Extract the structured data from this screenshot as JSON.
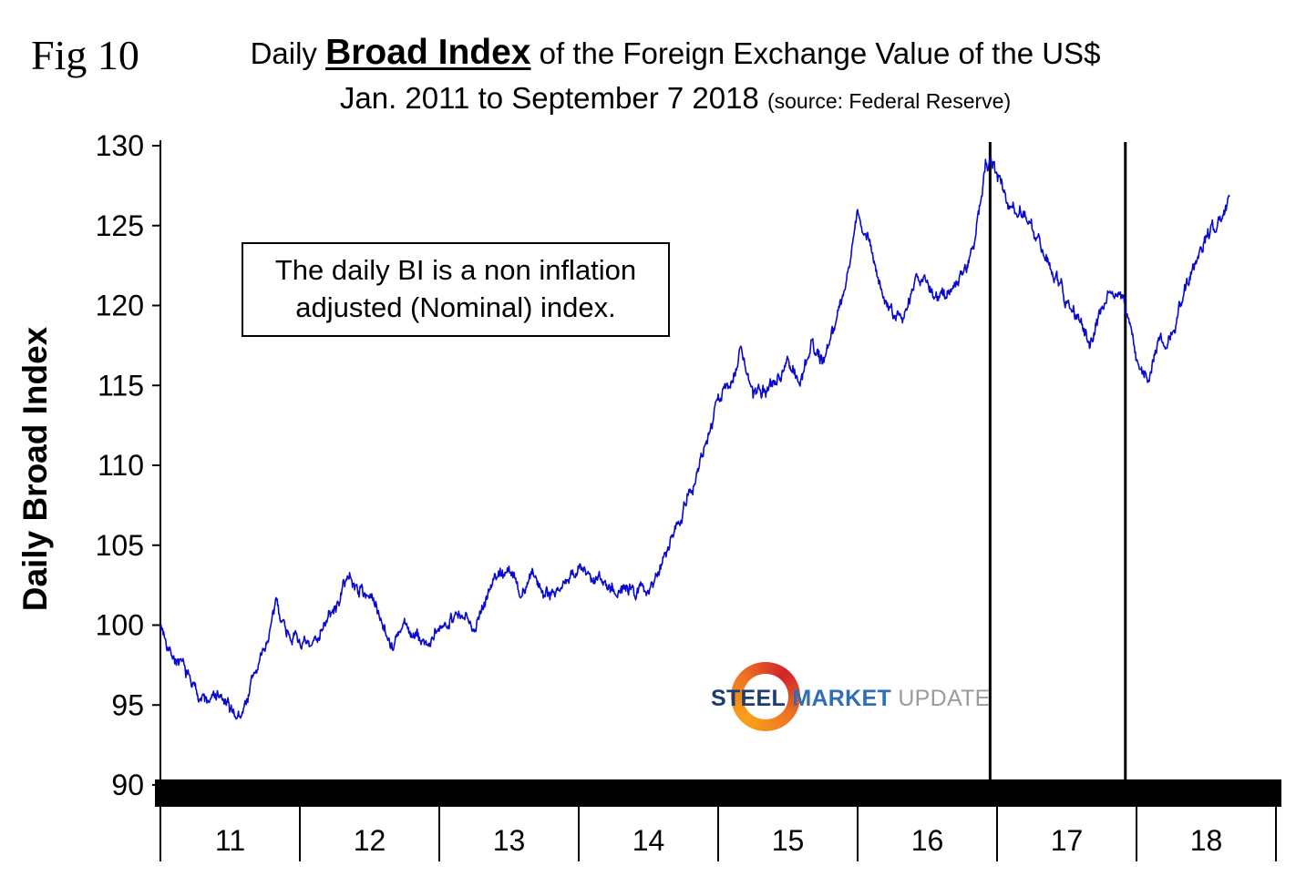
{
  "figure": {
    "label": "Fig 10"
  },
  "title": {
    "prefix": "Daily ",
    "emphasis": "Broad Index",
    "suffix": " of the Foreign Exchange Value of the US$",
    "date_range": "Jan. 2011 to September 7 2018 ",
    "source": "(source: Federal Reserve)"
  },
  "annotation": {
    "line1": "The daily BI is a non inflation",
    "line2": "adjusted (Nominal) index."
  },
  "logo": {
    "word1": "STEEL",
    "word2": "MARKET",
    "word3": "UPDATE",
    "ring_color": "#ef7622"
  },
  "chart_data": {
    "type": "line",
    "title": "Daily Broad Index of the Foreign Exchange Value of the US$",
    "subtitle": "Jan. 2011 to September 7 2018 (source: Federal Reserve)",
    "ylabel": "Daily Broad Index",
    "xlabel": "",
    "ylim": [
      90,
      130
    ],
    "y_ticks": [
      90,
      95,
      100,
      105,
      110,
      115,
      120,
      125,
      130
    ],
    "x_ticks": [
      "11",
      "12",
      "13",
      "14",
      "15",
      "16",
      "17",
      "18"
    ],
    "x_range_years": [
      2011,
      2019
    ],
    "grid": false,
    "legend": "none",
    "line_color": "#0a0ace",
    "event_marker_years": [
      2016.95,
      2017.92
    ],
    "series": [
      {
        "name": "Daily Broad Index (Nominal)",
        "start": "2011-01",
        "freq": "monthly-approx",
        "values": [
          100.0,
          98.3,
          97.2,
          96.0,
          95.2,
          95.6,
          94.6,
          94.3,
          96.8,
          98.5,
          101.3,
          99.6,
          99.0,
          98.4,
          100.2,
          100.8,
          103.0,
          102.3,
          101.9,
          100.5,
          98.7,
          99.9,
          99.2,
          98.8,
          99.4,
          100.8,
          100.3,
          100.0,
          101.8,
          103.2,
          103.5,
          101.9,
          103.3,
          102.0,
          102.3,
          102.7,
          103.6,
          102.8,
          103.0,
          102.4,
          102.2,
          102.1,
          102.3,
          103.6,
          105.8,
          107.3,
          109.2,
          111.5,
          114.0,
          115.2,
          117.3,
          114.2,
          114.8,
          115.2,
          116.8,
          115.0,
          117.8,
          116.5,
          118.8,
          121.5,
          125.8,
          124.0,
          121.0,
          119.5,
          118.9,
          121.8,
          121.3,
          120.4,
          121.0,
          122.0,
          123.8,
          128.8,
          128.3,
          126.6,
          126.0,
          124.8,
          123.5,
          122.0,
          120.3,
          119.4,
          117.3,
          119.6,
          120.9,
          120.2,
          116.5,
          115.6,
          117.7,
          117.9,
          120.5,
          122.8,
          124.3,
          125.2,
          126.5
        ]
      }
    ]
  }
}
